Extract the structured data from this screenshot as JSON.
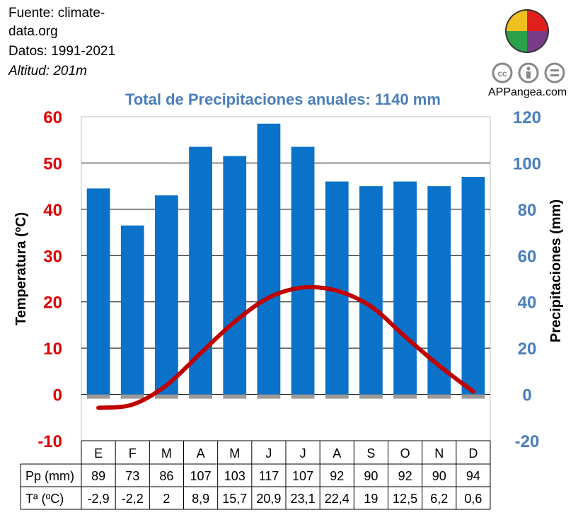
{
  "info": {
    "fuente_line1": "Fuente: climate-",
    "fuente_line2": "data.org",
    "datos": "Datos: 1991-2021",
    "altitud": "Altitud: 201m"
  },
  "brand": {
    "site": "APPangea.com"
  },
  "colors": {
    "temp_axis": "#e00000",
    "precip_axis": "#4a7ebb",
    "bar": "#0a72c9",
    "line": "#c00000",
    "grid": "#000000"
  },
  "chart_data": {
    "type": "bar+line",
    "title": "Total de Precipitaciones anuales: 1140 mm",
    "categories": [
      "E",
      "F",
      "M",
      "A",
      "M",
      "J",
      "J",
      "A",
      "S",
      "O",
      "N",
      "D"
    ],
    "series": [
      {
        "name": "Pp (mm)",
        "type": "bar",
        "axis": "right",
        "values": [
          89,
          73,
          86,
          107,
          103,
          117,
          107,
          92,
          90,
          92,
          90,
          94
        ]
      },
      {
        "name": "Tª (ºC)",
        "type": "line",
        "axis": "left",
        "values": [
          -2.9,
          -2.2,
          2,
          8.9,
          15.7,
          20.9,
          23.1,
          22.4,
          19,
          12.5,
          6.2,
          0.6
        ]
      }
    ],
    "table_values": {
      "precip": [
        "89",
        "73",
        "86",
        "107",
        "103",
        "117",
        "107",
        "92",
        "90",
        "92",
        "90",
        "94"
      ],
      "temp": [
        "-2,9",
        "-2,2",
        "2",
        "8,9",
        "15,7",
        "20,9",
        "23,1",
        "22,4",
        "19",
        "12,5",
        "6,2",
        "0,6"
      ]
    },
    "ylabel_left": "Temperatura (ºC)",
    "ylabel_right": "Precipitaciones (mm)",
    "ylim_left": [
      -10,
      60
    ],
    "ylim_right": [
      -20,
      120
    ],
    "yticks_left": [
      -10,
      0,
      10,
      20,
      30,
      40,
      50,
      60
    ],
    "yticks_right": [
      -20,
      0,
      20,
      40,
      60,
      80,
      100,
      120
    ],
    "table_row_labels": [
      "Pp (mm)",
      "Tª (ºC)"
    ],
    "grid": true
  }
}
